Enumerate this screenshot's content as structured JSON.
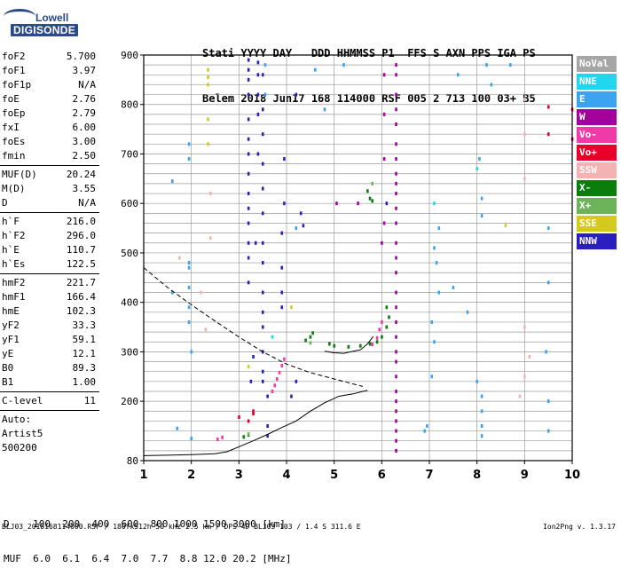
{
  "logo": {
    "line1": "Lowell",
    "line2": "DIGISONDE"
  },
  "header": {
    "line1": "Stati YYYY DAY   DDD HHMMSS P1  FFS S AXN PPS IGA PS",
    "line2": "Belem 2018 Jun17 168 114000 RSF 005 2 713 100 03+ B5"
  },
  "params_group1": [
    {
      "name": "foF2",
      "value": "5.700"
    },
    {
      "name": "foF1",
      "value": "3.97"
    },
    {
      "name": "foF1p",
      "value": "N/A"
    },
    {
      "name": "foE",
      "value": "2.76"
    },
    {
      "name": "foEp",
      "value": "2.79"
    },
    {
      "name": "fxI",
      "value": "6.00"
    },
    {
      "name": "foEs",
      "value": "3.00"
    },
    {
      "name": "fmin",
      "value": "2.50"
    }
  ],
  "params_group2": [
    {
      "name": "MUF(D)",
      "value": "20.24"
    },
    {
      "name": "M(D)",
      "value": "3.55"
    },
    {
      "name": "D",
      "value": "N/A"
    }
  ],
  "params_group3": [
    {
      "name": "h`F",
      "value": "216.0"
    },
    {
      "name": "h`F2",
      "value": "296.0"
    },
    {
      "name": "h`E",
      "value": "110.7"
    },
    {
      "name": "h`Es",
      "value": "122.5"
    }
  ],
  "params_group4": [
    {
      "name": "hmF2",
      "value": "221.7"
    },
    {
      "name": "hmF1",
      "value": "166.4"
    },
    {
      "name": "hmE",
      "value": "102.3"
    },
    {
      "name": "yF2",
      "value": "33.3"
    },
    {
      "name": "yF1",
      "value": "59.1"
    },
    {
      "name": "yE",
      "value": "12.1"
    },
    {
      "name": "B0",
      "value": "89.3"
    },
    {
      "name": "B1",
      "value": "1.00"
    }
  ],
  "params_group5": [
    {
      "name": "C-level",
      "value": "11"
    }
  ],
  "autoscaling": {
    "label": "Auto:",
    "software": "Artist5",
    "version": "500200"
  },
  "legend": [
    {
      "label": "NoVal",
      "color": "#a6a6a6"
    },
    {
      "label": "NNE",
      "color": "#22d6f2"
    },
    {
      "label": "E",
      "color": "#3ba3f0"
    },
    {
      "label": "W",
      "color": "#a3009c"
    },
    {
      "label": "Vo-",
      "color": "#f03aa8"
    },
    {
      "label": "Vo+",
      "color": "#e8002a"
    },
    {
      "label": "SSW",
      "color": "#f5b2b2"
    },
    {
      "label": "X-",
      "color": "#0b7d0b"
    },
    {
      "label": "X+",
      "color": "#6cb35a"
    },
    {
      "label": "SSE",
      "color": "#d4c91e"
    },
    {
      "label": "NNW",
      "color": "#2a1fbf"
    }
  ],
  "dmuf": {
    "line1": "D    100  200  400  600  800 1000 1500 3000 [km]",
    "line2": "MUF  6.0  6.1  6.4  7.0  7.7  8.8 12.0 20.2 [MHz]"
  },
  "footer": "BLJ03_2018168114000.RSF / 180fx512h 50 kHz 2.5 km / DPS-4D BLJ03 103 / 1.4 S 311.6 E",
  "version": "Ion2Png v. 1.3.17",
  "chart_data": {
    "type": "scatter",
    "xlim": [
      1,
      10
    ],
    "ylim": [
      80,
      900
    ],
    "x_ticks": [
      1,
      2,
      3,
      4,
      5,
      6,
      7,
      8,
      9,
      10
    ],
    "y_ticks": [
      80,
      200,
      300,
      400,
      500,
      600,
      700,
      800,
      900
    ],
    "grid": true,
    "legend_position": "right",
    "solid_profile": [
      [
        1.0,
        90
      ],
      [
        1.5,
        91
      ],
      [
        2.0,
        92
      ],
      [
        2.5,
        94
      ],
      [
        2.75,
        98
      ],
      [
        3.0,
        108
      ],
      [
        3.3,
        120
      ],
      [
        3.6,
        133
      ],
      [
        3.9,
        147
      ],
      [
        4.2,
        160
      ],
      [
        4.5,
        180
      ],
      [
        4.8,
        197
      ],
      [
        5.1,
        210
      ],
      [
        5.4,
        215
      ],
      [
        5.6,
        220
      ],
      [
        5.7,
        222
      ]
    ],
    "dashed_virtual": [
      [
        1.0,
        470
      ],
      [
        1.5,
        430
      ],
      [
        2.0,
        395
      ],
      [
        2.5,
        362
      ],
      [
        3.0,
        330
      ],
      [
        3.5,
        300
      ],
      [
        4.0,
        275
      ],
      [
        4.5,
        258
      ],
      [
        5.0,
        245
      ],
      [
        5.4,
        235
      ],
      [
        5.6,
        230
      ]
    ],
    "solid_F2_trace": [
      [
        4.8,
        301
      ],
      [
        5.0,
        298
      ],
      [
        5.2,
        297
      ],
      [
        5.4,
        301
      ],
      [
        5.55,
        304
      ],
      [
        5.7,
        316
      ],
      [
        5.82,
        331
      ]
    ],
    "series": [
      {
        "name": "NoVal",
        "color": "#a6a6a6",
        "points": []
      },
      {
        "name": "NNE",
        "color": "#22d6f2",
        "points": [
          [
            7.1,
            600
          ],
          [
            8.0,
            670
          ],
          [
            3.7,
            330
          ]
        ]
      },
      {
        "name": "E",
        "color": "#3ba3f0",
        "points": [
          [
            1.6,
            645
          ],
          [
            1.95,
            480
          ],
          [
            1.95,
            470
          ],
          [
            1.95,
            430
          ],
          [
            1.95,
            390
          ],
          [
            1.95,
            360
          ],
          [
            1.95,
            690
          ],
          [
            1.95,
            720
          ],
          [
            2.0,
            300
          ],
          [
            2.0,
            125
          ],
          [
            1.7,
            145
          ],
          [
            1.6,
            420
          ],
          [
            3.55,
            880
          ],
          [
            3.55,
            820
          ],
          [
            4.6,
            870
          ],
          [
            5.2,
            880
          ],
          [
            4.2,
            550
          ],
          [
            4.8,
            790
          ],
          [
            7.2,
            550
          ],
          [
            7.1,
            510
          ],
          [
            7.15,
            480
          ],
          [
            7.2,
            420
          ],
          [
            7.05,
            360
          ],
          [
            7.1,
            320
          ],
          [
            7.05,
            250
          ],
          [
            6.95,
            150
          ],
          [
            6.9,
            140
          ],
          [
            7.5,
            430
          ],
          [
            7.6,
            860
          ],
          [
            7.8,
            380
          ],
          [
            8.0,
            240
          ],
          [
            8.1,
            210
          ],
          [
            8.1,
            180
          ],
          [
            8.1,
            150
          ],
          [
            8.1,
            130
          ],
          [
            8.3,
            840
          ],
          [
            8.2,
            880
          ],
          [
            8.7,
            880
          ],
          [
            8.05,
            690
          ],
          [
            8.1,
            610
          ],
          [
            8.1,
            575
          ],
          [
            9.5,
            550
          ],
          [
            9.5,
            440
          ],
          [
            9.45,
            300
          ],
          [
            9.5,
            200
          ],
          [
            9.5,
            140
          ]
        ]
      },
      {
        "name": "W",
        "color": "#a3009c",
        "points": [
          [
            6.3,
            880
          ],
          [
            6.3,
            860
          ],
          [
            6.3,
            820
          ],
          [
            6.3,
            790
          ],
          [
            6.3,
            760
          ],
          [
            6.3,
            720
          ],
          [
            6.3,
            690
          ],
          [
            6.3,
            660
          ],
          [
            6.3,
            640
          ],
          [
            6.3,
            620
          ],
          [
            6.3,
            590
          ],
          [
            6.3,
            560
          ],
          [
            6.3,
            520
          ],
          [
            6.3,
            490
          ],
          [
            6.3,
            460
          ],
          [
            6.3,
            420
          ],
          [
            6.3,
            390
          ],
          [
            6.3,
            360
          ],
          [
            6.3,
            330
          ],
          [
            6.3,
            300
          ],
          [
            6.3,
            280
          ],
          [
            6.3,
            250
          ],
          [
            6.3,
            220
          ],
          [
            6.3,
            200
          ],
          [
            6.3,
            180
          ],
          [
            6.3,
            160
          ],
          [
            6.3,
            140
          ],
          [
            6.3,
            120
          ],
          [
            6.3,
            100
          ],
          [
            6.05,
            860
          ],
          [
            6.05,
            780
          ],
          [
            6.05,
            690
          ],
          [
            6.05,
            560
          ],
          [
            6.0,
            520
          ],
          [
            5.05,
            600
          ],
          [
            5.5,
            600
          ]
        ]
      },
      {
        "name": "Vo-",
        "color": "#f03aa8",
        "points": [
          [
            2.55,
            123
          ],
          [
            2.65,
            127
          ],
          [
            3.7,
            220
          ],
          [
            3.75,
            232
          ],
          [
            3.8,
            245
          ],
          [
            3.85,
            258
          ],
          [
            3.9,
            272
          ],
          [
            3.95,
            285
          ],
          [
            5.8,
            315
          ],
          [
            5.9,
            328
          ],
          [
            5.95,
            345
          ],
          [
            6.0,
            360
          ]
        ]
      },
      {
        "name": "Vo+",
        "color": "#e8002a",
        "points": [
          [
            3.0,
            168
          ],
          [
            3.2,
            160
          ],
          [
            3.3,
            180
          ],
          [
            3.3,
            175
          ],
          [
            9.5,
            795
          ],
          [
            9.5,
            740
          ],
          [
            10.0,
            730
          ],
          [
            10.0,
            790
          ]
        ]
      },
      {
        "name": "SSW",
        "color": "#f5b2b2",
        "points": [
          [
            2.4,
            620
          ],
          [
            2.4,
            530
          ],
          [
            2.3,
            345
          ],
          [
            2.2,
            420
          ],
          [
            1.75,
            490
          ],
          [
            9.0,
            810
          ],
          [
            9.0,
            740
          ],
          [
            9.0,
            650
          ],
          [
            9.0,
            350
          ],
          [
            9.1,
            290
          ],
          [
            9.0,
            250
          ],
          [
            8.9,
            210
          ]
        ]
      },
      {
        "name": "X-",
        "color": "#0b7d0b",
        "points": [
          [
            3.1,
            128
          ],
          [
            3.2,
            132
          ],
          [
            4.4,
            323
          ],
          [
            4.5,
            330
          ],
          [
            4.55,
            338
          ],
          [
            4.9,
            316
          ],
          [
            5.0,
            312
          ],
          [
            5.3,
            310
          ],
          [
            5.55,
            312
          ],
          [
            5.75,
            316
          ],
          [
            5.9,
            320
          ],
          [
            6.0,
            330
          ],
          [
            6.1,
            350
          ],
          [
            6.15,
            370
          ],
          [
            6.1,
            390
          ],
          [
            5.7,
            625
          ],
          [
            5.75,
            610
          ],
          [
            5.8,
            605
          ]
        ]
      },
      {
        "name": "X+",
        "color": "#6cb35a",
        "points": [
          [
            3.2,
            134
          ],
          [
            4.5,
            318
          ],
          [
            5.8,
            640
          ]
        ]
      },
      {
        "name": "SSE",
        "color": "#d4c91e",
        "points": [
          [
            2.35,
            870
          ],
          [
            2.35,
            855
          ],
          [
            2.35,
            840
          ],
          [
            2.35,
            770
          ],
          [
            2.35,
            720
          ],
          [
            3.2,
            270
          ],
          [
            4.1,
            390
          ],
          [
            8.6,
            555
          ]
        ]
      },
      {
        "name": "NNW",
        "color": "#2a1fbf",
        "points": [
          [
            3.2,
            890
          ],
          [
            3.2,
            870
          ],
          [
            3.2,
            850
          ],
          [
            3.2,
            820
          ],
          [
            3.2,
            770
          ],
          [
            3.2,
            730
          ],
          [
            3.2,
            700
          ],
          [
            3.2,
            660
          ],
          [
            3.2,
            620
          ],
          [
            3.2,
            590
          ],
          [
            3.2,
            560
          ],
          [
            3.2,
            520
          ],
          [
            3.2,
            490
          ],
          [
            3.2,
            440
          ],
          [
            3.4,
            885
          ],
          [
            3.4,
            860
          ],
          [
            3.4,
            820
          ],
          [
            3.4,
            780
          ],
          [
            3.4,
            700
          ],
          [
            3.35,
            520
          ],
          [
            3.5,
            860
          ],
          [
            3.5,
            790
          ],
          [
            3.5,
            740
          ],
          [
            3.5,
            680
          ],
          [
            3.5,
            630
          ],
          [
            3.5,
            580
          ],
          [
            3.5,
            520
          ],
          [
            3.5,
            480
          ],
          [
            3.5,
            420
          ],
          [
            3.5,
            380
          ],
          [
            3.5,
            350
          ],
          [
            3.5,
            300
          ],
          [
            3.5,
            260
          ],
          [
            3.5,
            240
          ],
          [
            3.6,
            210
          ],
          [
            3.6,
            150
          ],
          [
            3.6,
            130
          ],
          [
            3.3,
            290
          ],
          [
            3.25,
            240
          ],
          [
            3.95,
            690
          ],
          [
            3.95,
            600
          ],
          [
            3.9,
            540
          ],
          [
            3.9,
            470
          ],
          [
            3.9,
            420
          ],
          [
            3.9,
            390
          ],
          [
            4.2,
            820
          ],
          [
            4.3,
            580
          ],
          [
            4.35,
            555
          ],
          [
            4.1,
            210
          ],
          [
            4.2,
            240
          ],
          [
            6.1,
            600
          ]
        ]
      }
    ]
  }
}
